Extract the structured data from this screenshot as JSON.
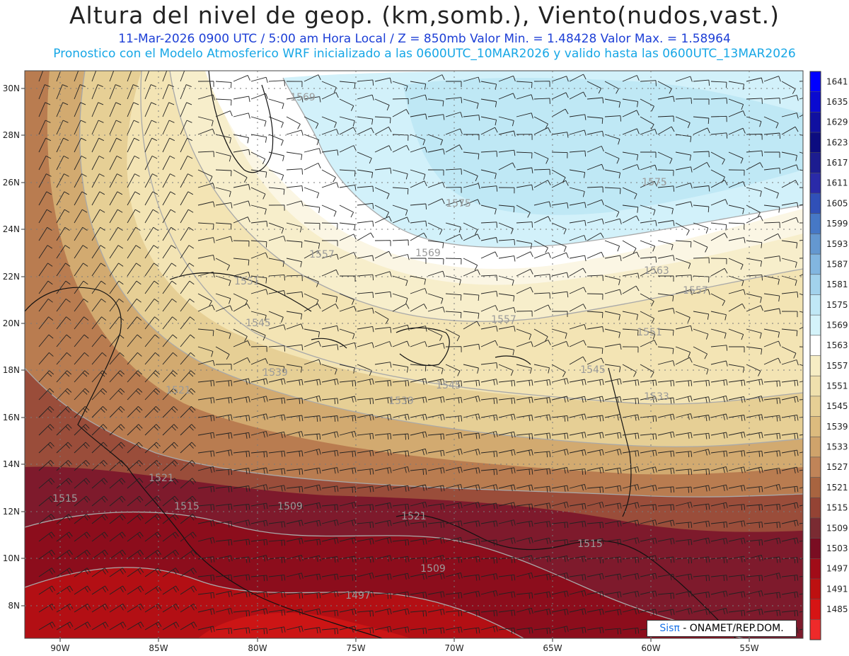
{
  "header": {
    "title": "Altura del nivel de geop. (km,somb.), Viento(nudos,vast.)",
    "subtitle1": "11-Mar-2026  0900 UTC / 5:00 am Hora Local / Z = 850mb    Valor Min. = 1.48428  Valor Max. = 1.58964",
    "subtitle2": "Pronostico con el Modelo Atmosferico WRF inicializado a las 0600UTC_10MAR2026 y valido hasta las  0600UTC_13MAR2026"
  },
  "map": {
    "lat_labels": [
      "30N",
      "28N",
      "26N",
      "24N",
      "22N",
      "20N",
      "18N",
      "16N",
      "14N",
      "12N",
      "10N",
      "8N"
    ],
    "lon_labels": [
      "90W",
      "85W",
      "80W",
      "75W",
      "70W",
      "65W",
      "60W",
      "55W"
    ],
    "contour_labels": [
      "1569",
      "1575",
      "1575",
      "1569",
      "1557",
      "1551",
      "1563",
      "1557",
      "1545",
      "1557",
      "1551",
      "1539",
      "1545",
      "1545",
      "1539",
      "1533",
      "1521",
      "1521",
      "1515",
      "1515",
      "1509",
      "1521",
      "1509",
      "1497",
      "1515"
    ]
  },
  "colorbar": {
    "levels": [
      "1641",
      "1635",
      "1629",
      "1623",
      "1617",
      "1611",
      "1605",
      "1599",
      "1593",
      "1587",
      "1581",
      "1575",
      "1569",
      "1563",
      "1557",
      "1551",
      "1545",
      "1539",
      "1533",
      "1527",
      "1521",
      "1515",
      "1509",
      "1503",
      "1497",
      "1491",
      "1485"
    ],
    "colors": [
      "#0000ff",
      "#0a0ad0",
      "#1010a0",
      "#0c0c80",
      "#1c1c90",
      "#2a2aa8",
      "#3050b8",
      "#4678c6",
      "#6498d0",
      "#82b6e0",
      "#a2d2ec",
      "#c0e8f6",
      "#d4f3fa",
      "#ffffff",
      "#f6edc4",
      "#efe0ad",
      "#e6cf95",
      "#dcbb7e",
      "#cfa36b",
      "#c08458",
      "#a86440",
      "#944334",
      "#7a2b32",
      "#7a0d22",
      "#a10c18",
      "#bd1010",
      "#d61414",
      "#ee2a2a"
    ]
  },
  "logo": {
    "sis": "Sisπ",
    "rest": " - ONAMET/REP.DOM."
  }
}
